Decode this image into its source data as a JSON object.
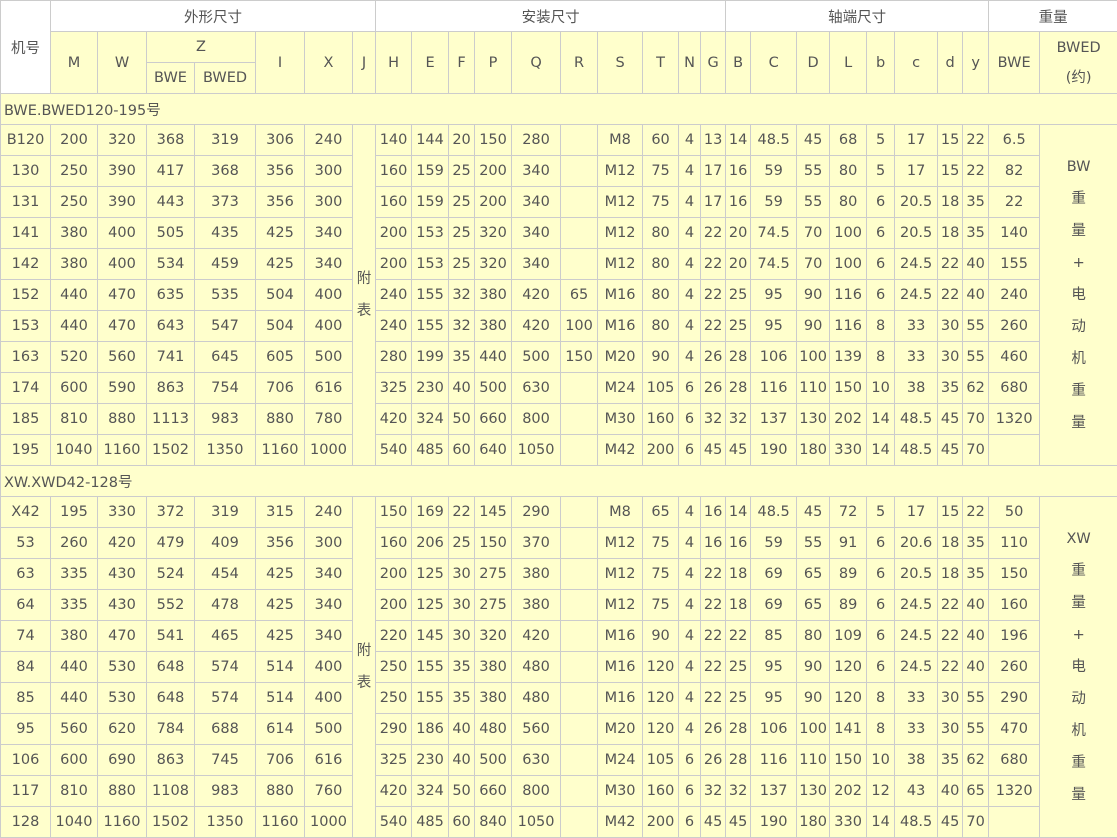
{
  "header": {
    "machine_no": "机号",
    "groups": [
      "外形尺寸",
      "安装尺寸",
      "轴端尺寸",
      "重量"
    ],
    "cols_a": [
      "M",
      "W",
      "Z",
      "I",
      "X",
      "J"
    ],
    "z_sub": [
      "BWE",
      "BWED"
    ],
    "cols_b": [
      "H",
      "E",
      "F",
      "P",
      "Q",
      "R",
      "S",
      "T",
      "N",
      "G"
    ],
    "cols_c": [
      "B",
      "C",
      "D",
      "L",
      "b",
      "c",
      "d",
      "y"
    ],
    "weight_bwe": "BWE",
    "weight_bwed": "BWED",
    "weight_bwed_note": "(约)"
  },
  "sections": [
    {
      "title": "BWE.BWED120-195号",
      "appendix": [
        "附",
        "表"
      ],
      "weight_note": [
        "BW",
        "重",
        "量",
        "+",
        "电",
        "动",
        "机",
        "重",
        "量"
      ],
      "rows": [
        [
          "B120",
          "200",
          "320",
          "368",
          "319",
          "306",
          "240",
          "140",
          "144",
          "20",
          "150",
          "280",
          "",
          "M8",
          "60",
          "4",
          "13",
          "14",
          "48.5",
          "45",
          "68",
          "5",
          "17",
          "15",
          "22",
          "6.5"
        ],
        [
          "130",
          "250",
          "390",
          "417",
          "368",
          "356",
          "300",
          "160",
          "159",
          "25",
          "200",
          "340",
          "",
          "M12",
          "75",
          "4",
          "17",
          "16",
          "59",
          "55",
          "80",
          "5",
          "17",
          "15",
          "22",
          "82"
        ],
        [
          "131",
          "250",
          "390",
          "443",
          "373",
          "356",
          "300",
          "160",
          "159",
          "25",
          "200",
          "340",
          "",
          "M12",
          "75",
          "4",
          "17",
          "16",
          "59",
          "55",
          "80",
          "6",
          "20.5",
          "18",
          "35",
          "22"
        ],
        [
          "141",
          "380",
          "400",
          "505",
          "435",
          "425",
          "340",
          "200",
          "153",
          "25",
          "320",
          "340",
          "",
          "M12",
          "80",
          "4",
          "22",
          "20",
          "74.5",
          "70",
          "100",
          "6",
          "20.5",
          "18",
          "35",
          "140"
        ],
        [
          "142",
          "380",
          "400",
          "534",
          "459",
          "425",
          "340",
          "200",
          "153",
          "25",
          "320",
          "340",
          "",
          "M12",
          "80",
          "4",
          "22",
          "20",
          "74.5",
          "70",
          "100",
          "6",
          "24.5",
          "22",
          "40",
          "155"
        ],
        [
          "152",
          "440",
          "470",
          "635",
          "535",
          "504",
          "400",
          "240",
          "155",
          "32",
          "380",
          "420",
          "65",
          "M16",
          "80",
          "4",
          "22",
          "25",
          "95",
          "90",
          "116",
          "6",
          "24.5",
          "22",
          "40",
          "240"
        ],
        [
          "153",
          "440",
          "470",
          "643",
          "547",
          "504",
          "400",
          "240",
          "155",
          "32",
          "380",
          "420",
          "100",
          "M16",
          "80",
          "4",
          "22",
          "25",
          "95",
          "90",
          "116",
          "8",
          "33",
          "30",
          "55",
          "260"
        ],
        [
          "163",
          "520",
          "560",
          "741",
          "645",
          "605",
          "500",
          "280",
          "199",
          "35",
          "440",
          "500",
          "150",
          "M20",
          "90",
          "4",
          "26",
          "28",
          "106",
          "100",
          "139",
          "8",
          "33",
          "30",
          "55",
          "460"
        ],
        [
          "174",
          "600",
          "590",
          "863",
          "754",
          "706",
          "616",
          "325",
          "230",
          "40",
          "500",
          "630",
          "",
          "M24",
          "105",
          "6",
          "26",
          "28",
          "116",
          "110",
          "150",
          "10",
          "38",
          "35",
          "62",
          "680"
        ],
        [
          "185",
          "810",
          "880",
          "1113",
          "983",
          "880",
          "780",
          "420",
          "324",
          "50",
          "660",
          "800",
          "",
          "M30",
          "160",
          "6",
          "32",
          "32",
          "137",
          "130",
          "202",
          "14",
          "48.5",
          "45",
          "70",
          "1320"
        ],
        [
          "195",
          "1040",
          "1160",
          "1502",
          "1350",
          "1160",
          "1000",
          "540",
          "485",
          "60",
          "640",
          "1050",
          "",
          "M42",
          "200",
          "6",
          "45",
          "45",
          "190",
          "180",
          "330",
          "14",
          "48.5",
          "45",
          "70",
          ""
        ]
      ]
    },
    {
      "title": "XW.XWD42-128号",
      "appendix": [
        "附",
        "表"
      ],
      "weight_note": [
        "XW",
        "重",
        "量",
        "+",
        "电",
        "动",
        "机",
        "重",
        "量"
      ],
      "rows": [
        [
          "X42",
          "195",
          "330",
          "372",
          "319",
          "315",
          "240",
          "150",
          "169",
          "22",
          "145",
          "290",
          "",
          "M8",
          "65",
          "4",
          "16",
          "14",
          "48.5",
          "45",
          "72",
          "5",
          "17",
          "15",
          "22",
          "50"
        ],
        [
          "53",
          "260",
          "420",
          "479",
          "409",
          "356",
          "300",
          "160",
          "206",
          "25",
          "150",
          "370",
          "",
          "M12",
          "75",
          "4",
          "16",
          "16",
          "59",
          "55",
          "91",
          "6",
          "20.6",
          "18",
          "35",
          "110"
        ],
        [
          "63",
          "335",
          "430",
          "524",
          "454",
          "425",
          "340",
          "200",
          "125",
          "30",
          "275",
          "380",
          "",
          "M12",
          "75",
          "4",
          "22",
          "18",
          "69",
          "65",
          "89",
          "6",
          "20.5",
          "18",
          "35",
          "150"
        ],
        [
          "64",
          "335",
          "430",
          "552",
          "478",
          "425",
          "340",
          "200",
          "125",
          "30",
          "275",
          "380",
          "",
          "M12",
          "75",
          "4",
          "22",
          "18",
          "69",
          "65",
          "89",
          "6",
          "24.5",
          "22",
          "40",
          "160"
        ],
        [
          "74",
          "380",
          "470",
          "541",
          "465",
          "425",
          "340",
          "220",
          "145",
          "30",
          "320",
          "420",
          "",
          "M16",
          "90",
          "4",
          "22",
          "22",
          "85",
          "80",
          "109",
          "6",
          "24.5",
          "22",
          "40",
          "196"
        ],
        [
          "84",
          "440",
          "530",
          "648",
          "574",
          "514",
          "400",
          "250",
          "155",
          "35",
          "380",
          "480",
          "",
          "M16",
          "120",
          "4",
          "22",
          "25",
          "95",
          "90",
          "120",
          "6",
          "24.5",
          "22",
          "40",
          "260"
        ],
        [
          "85",
          "440",
          "530",
          "648",
          "574",
          "514",
          "400",
          "250",
          "155",
          "35",
          "380",
          "480",
          "",
          "M16",
          "120",
          "4",
          "22",
          "25",
          "95",
          "90",
          "120",
          "8",
          "33",
          "30",
          "55",
          "290"
        ],
        [
          "95",
          "560",
          "620",
          "784",
          "688",
          "614",
          "500",
          "290",
          "186",
          "40",
          "480",
          "560",
          "",
          "M20",
          "120",
          "4",
          "26",
          "28",
          "106",
          "100",
          "141",
          "8",
          "33",
          "30",
          "55",
          "470"
        ],
        [
          "106",
          "600",
          "690",
          "863",
          "745",
          "706",
          "616",
          "325",
          "230",
          "40",
          "500",
          "630",
          "",
          "M24",
          "105",
          "6",
          "26",
          "28",
          "116",
          "110",
          "150",
          "10",
          "38",
          "35",
          "62",
          "680"
        ],
        [
          "117",
          "810",
          "880",
          "1108",
          "983",
          "880",
          "760",
          "420",
          "324",
          "50",
          "660",
          "800",
          "",
          "M30",
          "160",
          "6",
          "32",
          "32",
          "137",
          "130",
          "202",
          "12",
          "43",
          "40",
          "65",
          "1320"
        ],
        [
          "128",
          "1040",
          "1160",
          "1502",
          "1350",
          "1160",
          "1000",
          "540",
          "485",
          "60",
          "840",
          "1050",
          "",
          "M42",
          "200",
          "6",
          "45",
          "45",
          "190",
          "180",
          "330",
          "14",
          "48.5",
          "45",
          "70",
          ""
        ]
      ]
    }
  ],
  "colors": {
    "cell_bg": "#ffffcc",
    "border": "#cccccc",
    "text": "#555555"
  }
}
